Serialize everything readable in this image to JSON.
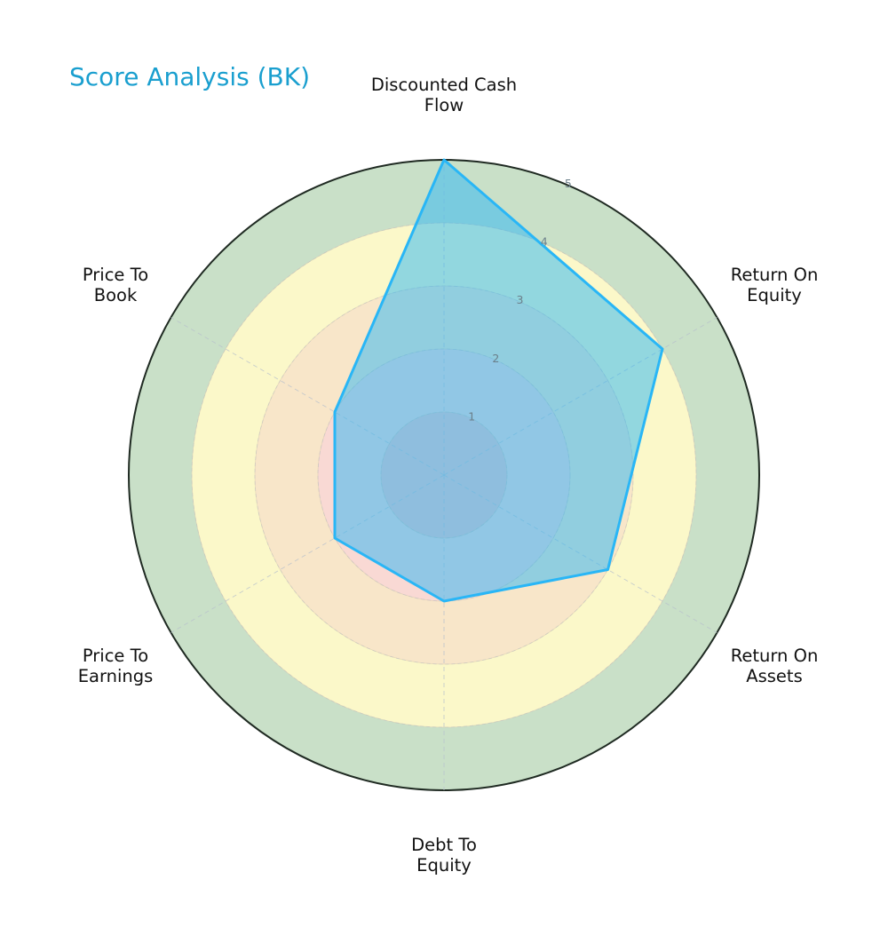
{
  "chart_data": {
    "type": "radar",
    "title": "Score Analysis (BK)",
    "categories": [
      "Discounted Cash Flow",
      "Return On Equity",
      "Return On Assets",
      "Debt To Equity",
      "Price To Earnings",
      "Price To Book"
    ],
    "category_lines": [
      [
        "Discounted Cash",
        "Flow"
      ],
      [
        "Return On",
        "Equity"
      ],
      [
        "Return On",
        "Assets"
      ],
      [
        "Debt To",
        "Equity"
      ],
      [
        "Price To",
        "Earnings"
      ],
      [
        "Price To",
        "Book"
      ]
    ],
    "series": [
      {
        "name": "BK",
        "values": [
          5,
          4,
          3,
          2,
          2,
          2
        ],
        "color": "#29b6f6"
      }
    ],
    "rlim": [
      0,
      5
    ],
    "rticks": [
      "1",
      "2",
      "3",
      "4",
      "5"
    ],
    "bands": [
      {
        "from": 0,
        "to": 1,
        "color": "#f4c6c6"
      },
      {
        "from": 1,
        "to": 2,
        "color": "#f9d9d4"
      },
      {
        "from": 2,
        "to": 3,
        "color": "#f8e6c9"
      },
      {
        "from": 3,
        "to": 4,
        "color": "#fbf8c9"
      },
      {
        "from": 4,
        "to": 5,
        "color": "#c9e0c8"
      }
    ]
  }
}
